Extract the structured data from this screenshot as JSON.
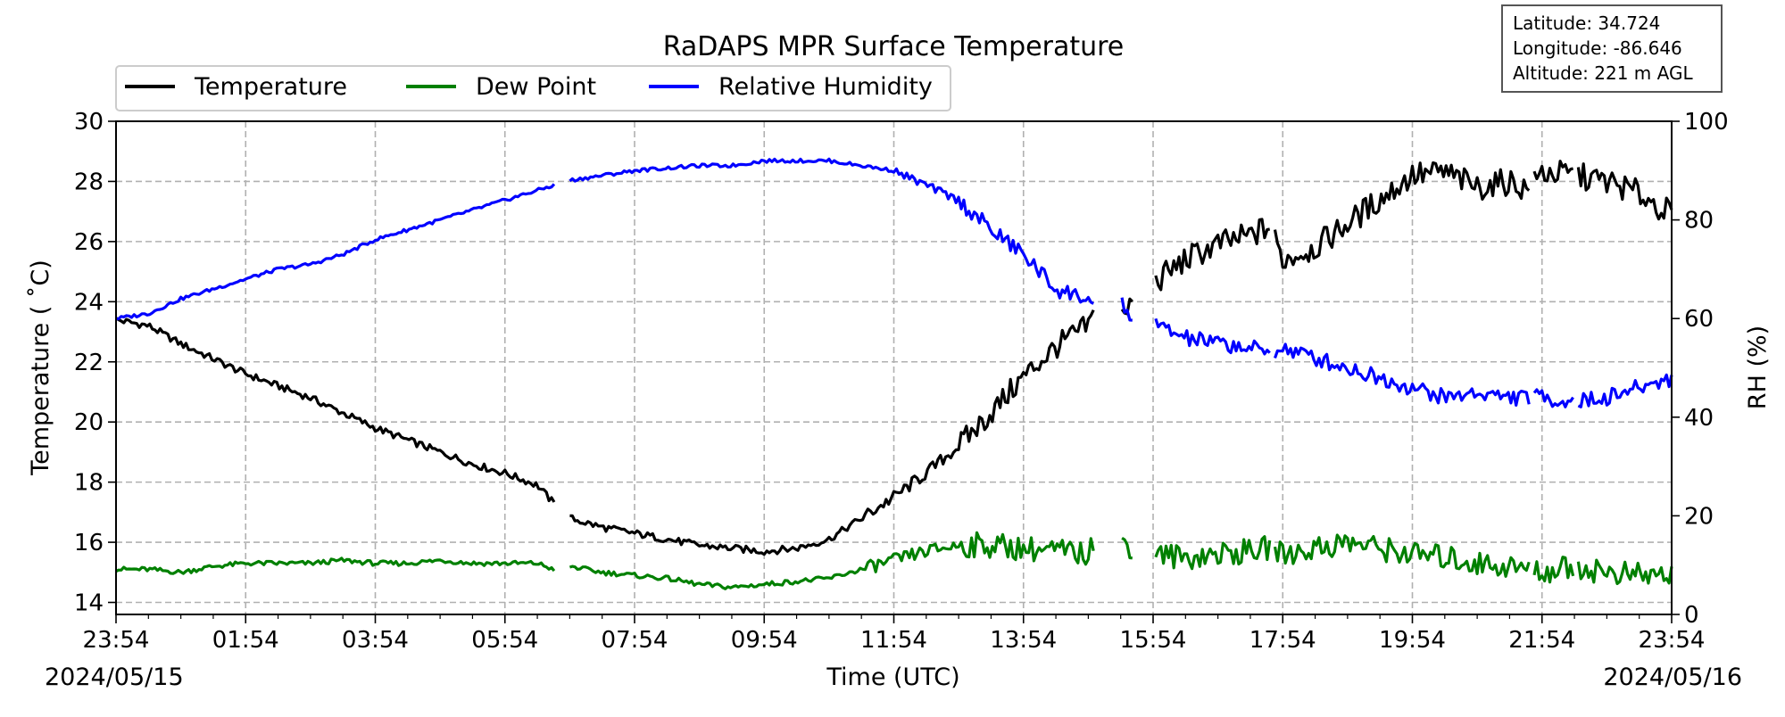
{
  "chart_data": {
    "type": "line",
    "title": "RaDAPS MPR Surface Temperature",
    "xlabel": "Time (UTC)",
    "ylabel": "Temperature ($^\\circ$C)",
    "ylabel_display": "Temperature ( ˚C)",
    "y2label": "RH (%)",
    "info_box": [
      "Latitude: 34.724",
      "Longitude: -86.646",
      "Altitude: 221 m AGL"
    ],
    "x_ticks": [
      "23:54",
      "01:54",
      "03:54",
      "05:54",
      "07:54",
      "09:54",
      "11:54",
      "13:54",
      "15:54",
      "17:54",
      "19:54",
      "21:54",
      "23:54"
    ],
    "date_start": "2024/05/15",
    "date_end": "2024/05/16",
    "xlim_hours": [
      0,
      24
    ],
    "x_unit": "hours since 2024/05/15 23:54 UTC",
    "ylim": [
      13.6,
      30
    ],
    "y_ticks": [
      14,
      16,
      18,
      20,
      22,
      24,
      26,
      28,
      30
    ],
    "y2lim": [
      0,
      100
    ],
    "y2_ticks": [
      0,
      20,
      40,
      60,
      80,
      100
    ],
    "grid": true,
    "legend_position": "top-left, above plot",
    "legend": [
      "Temperature",
      "Dew Point",
      "Relative Humidity"
    ],
    "colors": {
      "temperature": "#000000",
      "dew_point": "#008000",
      "relative_humidity": "#0000ff"
    },
    "gaps_hours": [
      [
        6.8,
        7.0
      ],
      [
        15.1,
        15.5
      ],
      [
        15.7,
        16.0
      ],
      [
        17.8,
        17.85
      ],
      [
        21.8,
        21.85
      ],
      [
        22.5,
        22.55
      ]
    ],
    "series": [
      {
        "name": "Temperature",
        "axis": "left",
        "color": "#000000",
        "x": [
          0,
          0.5,
          1,
          1.5,
          2,
          2.5,
          3,
          3.5,
          4,
          4.5,
          5,
          5.5,
          6,
          6.5,
          6.75,
          7,
          7.5,
          8,
          8.5,
          9,
          9.5,
          10,
          10.5,
          11,
          11.5,
          12,
          12.5,
          13,
          13.5,
          14,
          14.5,
          15,
          15.1,
          15.5,
          15.7,
          16,
          16.5,
          17,
          17.5,
          17.8,
          18,
          18.5,
          19,
          19.5,
          20,
          20.5,
          21,
          21.5,
          21.8,
          22,
          22.5,
          23,
          23.5,
          24
        ],
        "y": [
          23.4,
          23.2,
          22.6,
          22.1,
          21.6,
          21.2,
          20.8,
          20.3,
          19.8,
          19.4,
          19.0,
          18.6,
          18.3,
          17.9,
          17.3,
          16.8,
          16.5,
          16.3,
          16.1,
          15.9,
          15.8,
          15.7,
          15.8,
          16.1,
          16.8,
          17.5,
          18.3,
          19.2,
          20.3,
          21.5,
          22.5,
          23.2,
          23.6,
          23.8,
          24.0,
          24.6,
          25.4,
          25.9,
          26.2,
          26.5,
          25.4,
          25.8,
          26.6,
          27.4,
          28.2,
          28.3,
          27.8,
          28.0,
          27.7,
          28.3,
          28.2,
          28.0,
          27.6,
          26.9
        ]
      },
      {
        "name": "Dew Point",
        "axis": "left",
        "color": "#008000",
        "x": [
          0,
          0.5,
          1,
          1.5,
          2,
          2.5,
          3,
          3.5,
          4,
          4.5,
          5,
          5.5,
          6,
          6.5,
          6.75,
          7,
          7.5,
          8,
          8.5,
          9,
          9.5,
          10,
          10.5,
          11,
          11.5,
          12,
          12.5,
          13,
          13.5,
          14,
          14.5,
          15,
          15.1,
          15.5,
          15.7,
          16,
          16.5,
          17,
          17.5,
          17.8,
          18,
          18.5,
          19,
          19.5,
          20,
          20.5,
          21,
          21.5,
          21.8,
          22,
          22.5,
          23,
          23.5,
          24
        ],
        "y": [
          15.1,
          15.1,
          15.0,
          15.2,
          15.3,
          15.3,
          15.3,
          15.4,
          15.3,
          15.3,
          15.4,
          15.3,
          15.3,
          15.3,
          15.1,
          15.2,
          15.0,
          14.9,
          14.8,
          14.6,
          14.5,
          14.6,
          14.7,
          14.8,
          15.1,
          15.4,
          15.7,
          15.9,
          15.9,
          15.8,
          15.7,
          15.6,
          15.9,
          16.1,
          15.8,
          15.6,
          15.5,
          15.6,
          15.7,
          15.8,
          15.6,
          15.8,
          16.0,
          15.8,
          15.6,
          15.5,
          15.3,
          15.2,
          15.1,
          15.0,
          15.2,
          15.0,
          14.9,
          14.9
        ]
      },
      {
        "name": "Relative Humidity",
        "axis": "right",
        "color": "#0000ff",
        "x": [
          0,
          0.5,
          1,
          1.5,
          2,
          2.5,
          3,
          3.5,
          4,
          4.5,
          5,
          5.5,
          6,
          6.5,
          6.75,
          7,
          7.5,
          8,
          8.5,
          9,
          9.5,
          10,
          10.5,
          11,
          11.5,
          12,
          12.5,
          13,
          13.5,
          14,
          14.5,
          15,
          15.1,
          15.5,
          15.7,
          16,
          16.5,
          17,
          17.5,
          17.8,
          18,
          18.5,
          19,
          19.5,
          20,
          20.5,
          21,
          21.5,
          21.8,
          22,
          22.5,
          23,
          23.5,
          24
        ],
        "y": [
          60,
          61,
          64,
          66,
          68,
          70,
          71,
          73,
          76,
          78,
          80,
          82,
          84,
          86,
          87,
          88,
          89,
          90,
          90.5,
          91,
          91,
          92,
          92,
          92,
          91,
          90,
          87,
          84,
          78,
          73,
          66,
          64,
          62,
          63,
          60,
          59,
          56,
          55,
          54,
          53,
          54,
          52,
          50,
          48,
          46,
          44,
          45,
          44,
          44,
          44,
          43,
          44,
          46,
          48
        ]
      }
    ]
  }
}
